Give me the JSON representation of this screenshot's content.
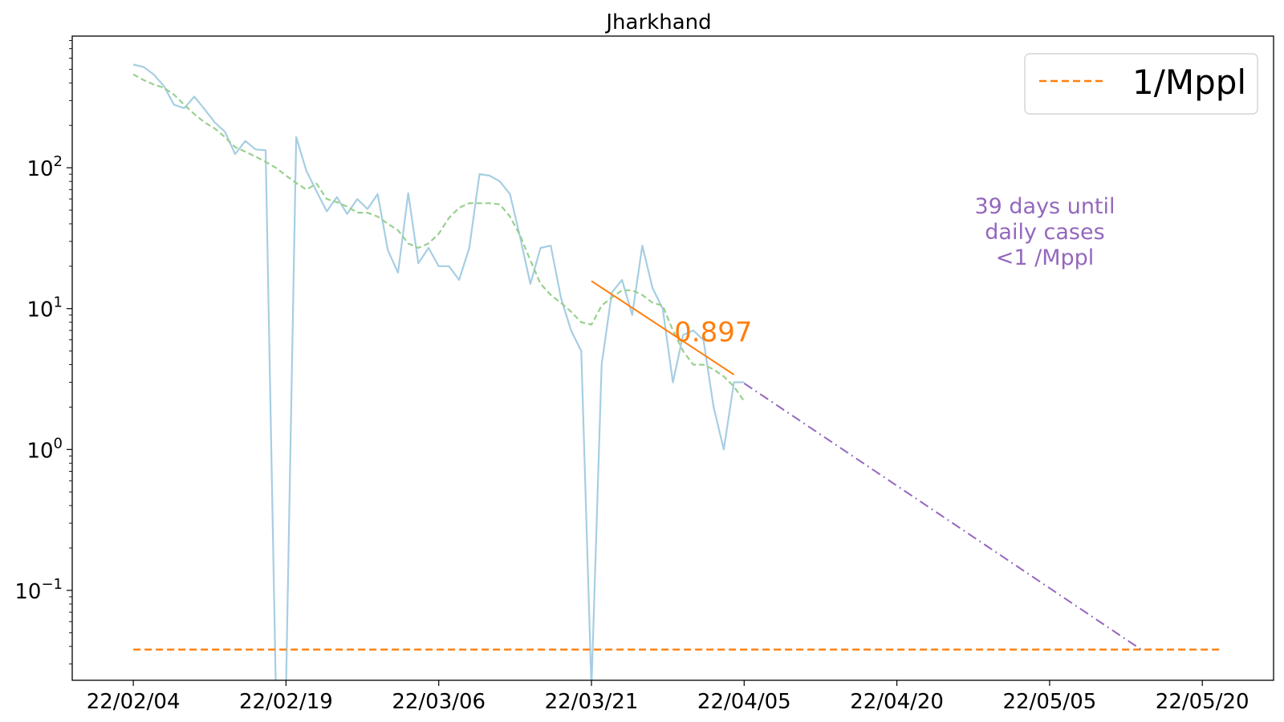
{
  "chart_data": {
    "type": "line",
    "title": "Jharkhand",
    "xlabel": "",
    "ylabel": "",
    "y_scale": "log",
    "x_is_date": true,
    "x_tick_labels": [
      "22/02/04",
      "22/02/19",
      "22/03/06",
      "22/03/21",
      "22/04/05",
      "22/04/20",
      "22/05/05",
      "22/05/20"
    ],
    "x_ticks": [
      "2022-02-04",
      "2022-02-19",
      "2022-03-06",
      "2022-03-21",
      "2022-04-05",
      "2022-04-20",
      "2022-05-05",
      "2022-05-20"
    ],
    "xlim": [
      "2022-01-29",
      "2022-05-27"
    ],
    "y_ticks": [
      {
        "value": 100,
        "base": "10",
        "exp": "2"
      },
      {
        "value": 10,
        "base": "10",
        "exp": "1"
      },
      {
        "value": 1,
        "base": "10",
        "exp": "0"
      },
      {
        "value": 0.1,
        "base": "10",
        "exp": "−1"
      }
    ],
    "ylim": [
      0.023,
      860
    ],
    "grid": false,
    "legend": {
      "location": "top-right",
      "entries": [
        {
          "label": "1/Mppl",
          "color": "#ff7f0e",
          "style": "dashed"
        }
      ]
    },
    "series": [
      {
        "color": "#a6cee3",
        "style": "solid",
        "start_date": "2022-02-04",
        "values": [
          540,
          520,
          460,
          380,
          280,
          265,
          320,
          260,
          210,
          180,
          125,
          155,
          135,
          133,
          0.001,
          0.001,
          165,
          95,
          68,
          49,
          62,
          47,
          60,
          51,
          65,
          26,
          18,
          66,
          21,
          27,
          20,
          20,
          16,
          27,
          90,
          88,
          80,
          65,
          32,
          15,
          27,
          28,
          12,
          7,
          5,
          0.001,
          4,
          13,
          16,
          9,
          28,
          14,
          10,
          3,
          6.5,
          7,
          6,
          2,
          1,
          3,
          3
        ]
      },
      {
        "color": "#98d08f",
        "style": "dashed",
        "start_date": "2022-02-04",
        "values": [
          460,
          420,
          390,
          370,
          330,
          280,
          240,
          210,
          190,
          165,
          140,
          130,
          120,
          110,
          100,
          88,
          78,
          70,
          77,
          60,
          57,
          53,
          48,
          48,
          45,
          40,
          36,
          29,
          27,
          29,
          34,
          44,
          52,
          56,
          56,
          56,
          55,
          45,
          33,
          22,
          15,
          12.5,
          11,
          9.5,
          8,
          7.7,
          10.5,
          12,
          13.5,
          13.5,
          12.5,
          11,
          10.5,
          7,
          5,
          4,
          4,
          3.7,
          3.3,
          2.8,
          2.2
        ]
      }
    ],
    "fit_line": {
      "color": "#ff7f0e",
      "start_date": "2022-03-21",
      "end_date": "2022-04-04",
      "y_start": 15.7,
      "y_end": 3.4,
      "label": "0.897"
    },
    "projection": {
      "color": "#9467bd",
      "start_date": "2022-04-05",
      "end_date": "2022-05-14",
      "y_start": 2.95,
      "y_end": 0.038
    },
    "threshold": {
      "value": 0.038,
      "color": "#ff7f0e",
      "start_date": "2022-02-04",
      "end_date": "2022-05-22"
    },
    "annotation": {
      "lines": [
        "39 days until",
        "daily cases",
        "<1 /Mppl"
      ],
      "color": "#9467bd"
    }
  }
}
